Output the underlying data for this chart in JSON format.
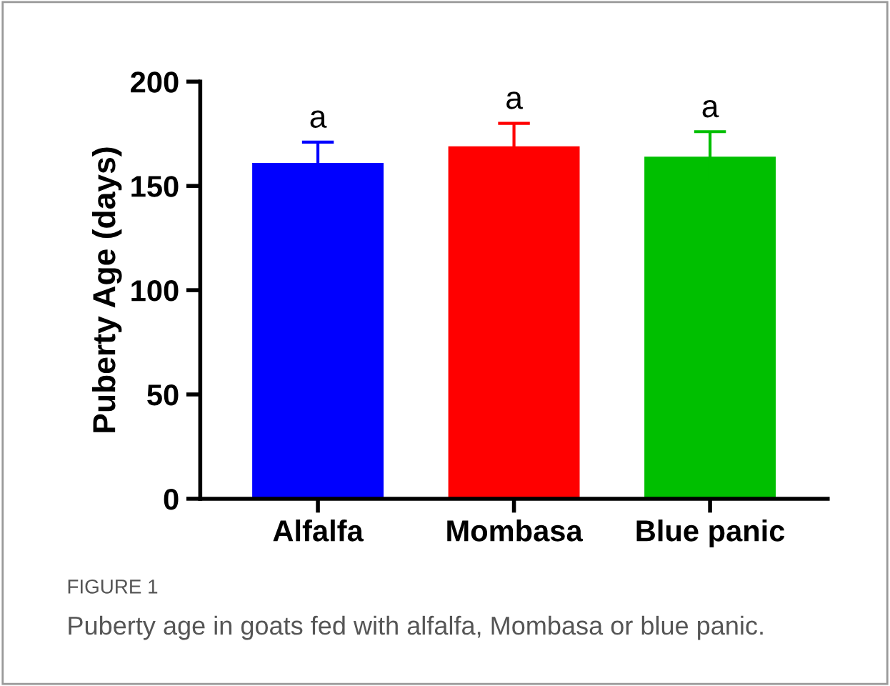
{
  "chart_data": {
    "type": "bar",
    "ylabel": "Puberty Age (days)",
    "categories": [
      "Alfalfa",
      "Mombasa",
      "Blue panic"
    ],
    "values": [
      161,
      169,
      164
    ],
    "colors": [
      "#0000ff",
      "#ff0000",
      "#00bf00"
    ],
    "errors": [
      10,
      11,
      12
    ],
    "ylim": [
      0,
      200
    ],
    "yticks": [
      0,
      50,
      100,
      150,
      200
    ],
    "grid": false,
    "annotations": [
      "a",
      "a",
      "a",
      "FIGURE 1",
      "Puberty age in goats fed with alfalfa, Mombasa or blue panic."
    ]
  }
}
